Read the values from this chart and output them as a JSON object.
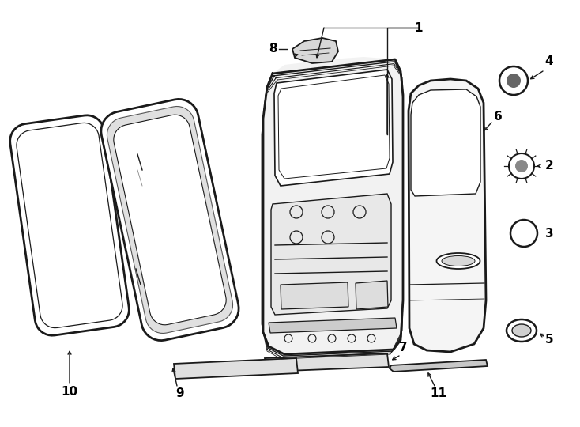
{
  "bg_color": "#ffffff",
  "line_color": "#1a1a1a",
  "label_color": "#000000",
  "figure_width": 7.34,
  "figure_height": 5.4,
  "dpi": 100,
  "label_fontsize": 11,
  "arrow_lw": 1.0,
  "arrow_ms": 7
}
